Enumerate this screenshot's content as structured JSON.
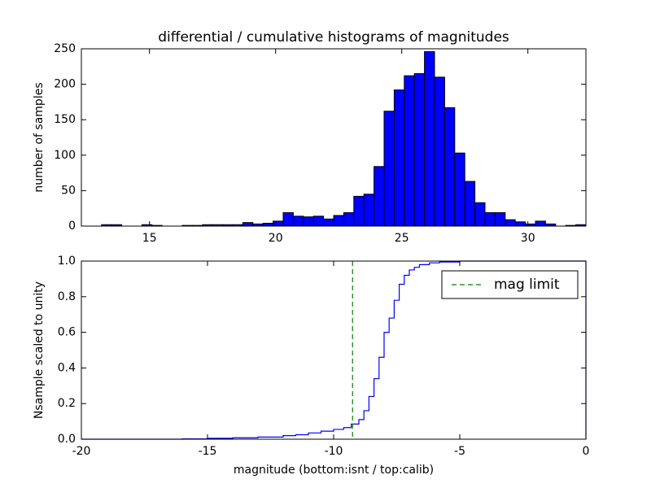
{
  "chart_data": [
    {
      "type": "histogram",
      "title": "differential / cumulative histograms of magnitudes",
      "ylabel": "number of samples",
      "bins": [
        12.3,
        12.7,
        13.1,
        13.5,
        13.9,
        14.3,
        14.7,
        15.1,
        15.5,
        15.9,
        16.3,
        16.7,
        17.1,
        17.5,
        17.9,
        18.3,
        18.7,
        19.1,
        19.5,
        19.9,
        20.3,
        20.7,
        21.1,
        21.5,
        21.9,
        22.3,
        22.7,
        23.1,
        23.5,
        23.9,
        24.3,
        24.7,
        25.1,
        25.5,
        25.9,
        26.3,
        26.7,
        27.1,
        27.5,
        27.9,
        28.3,
        28.7,
        29.1,
        29.5,
        29.9,
        30.3,
        30.7,
        31.1,
        31.5,
        31.9,
        32.3
      ],
      "values": [
        0,
        0,
        2,
        2,
        0,
        0,
        2,
        1,
        0,
        0,
        1,
        1,
        2,
        2,
        2,
        2,
        5,
        3,
        4,
        7,
        19,
        14,
        13,
        14,
        10,
        15,
        19,
        42,
        45,
        84,
        162,
        192,
        212,
        215,
        246,
        210,
        167,
        103,
        63,
        33,
        19,
        19,
        9,
        6,
        3,
        7,
        3,
        0,
        1,
        2
      ],
      "color": "#0000ff",
      "xlim": [
        12.3,
        32.3
      ],
      "xticks": [
        15,
        20,
        25,
        30
      ],
      "ylim": [
        0,
        250
      ],
      "yticks": [
        0,
        50,
        100,
        150,
        200,
        250
      ]
    },
    {
      "type": "line",
      "xlabel": "magnitude (bottom:isnt / top:calib)",
      "ylabel": "Nsample scaled to unity",
      "x": [
        -20,
        -16,
        -15,
        -14,
        -13,
        -12,
        -11.5,
        -11,
        -10.5,
        -10,
        -9.6,
        -9.3,
        -9,
        -8.8,
        -8.6,
        -8.4,
        -8.2,
        -8,
        -7.8,
        -7.6,
        -7.4,
        -7.2,
        -7,
        -6.8,
        -6.6,
        -6.2,
        -5.8,
        -5,
        -0.02,
        0
      ],
      "series": [
        {
          "color": "#0000ff",
          "values": [
            0,
            0.002,
            0.005,
            0.008,
            0.012,
            0.02,
            0.025,
            0.035,
            0.045,
            0.055,
            0.065,
            0.085,
            0.11,
            0.16,
            0.24,
            0.34,
            0.46,
            0.6,
            0.68,
            0.78,
            0.87,
            0.92,
            0.95,
            0.965,
            0.98,
            0.99,
            0.995,
            1,
            1,
            0
          ]
        }
      ],
      "vlines": [
        {
          "name": "mag limit",
          "x": -9.25,
          "color": "#008000",
          "style": "dashed"
        }
      ],
      "legend": "upper right",
      "xlim": [
        -20,
        0
      ],
      "xticks": [
        -20,
        -15,
        -10,
        -5,
        0
      ],
      "ylim": [
        0,
        1
      ],
      "yticks": [
        {
          "value": 0,
          "label": "0.0"
        },
        0.2,
        0.4,
        0.6,
        0.8,
        {
          "value": 1,
          "label": "1.0"
        }
      ]
    }
  ]
}
